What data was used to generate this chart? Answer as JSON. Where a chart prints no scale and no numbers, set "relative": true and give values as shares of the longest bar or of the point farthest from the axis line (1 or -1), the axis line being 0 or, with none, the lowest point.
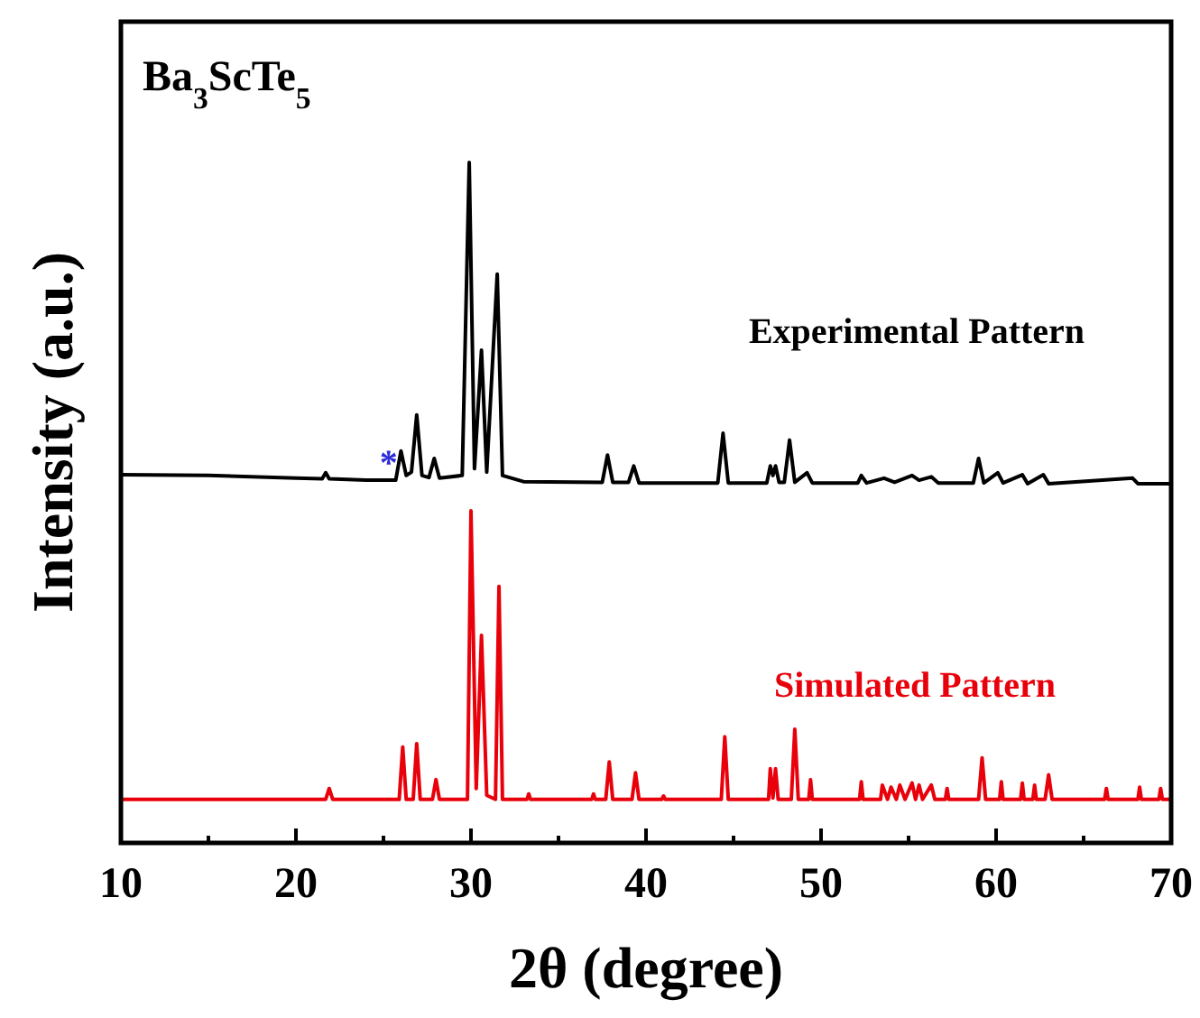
{
  "chart_data": {
    "type": "line",
    "title": "Ba$_{3}$ScTe$_{5}$",
    "xlabel": "2θ (degree)",
    "ylabel": "Intensity (a.u.)",
    "relative": true,
    "xlim": [
      10,
      70
    ],
    "xticks": [
      10,
      {
        "value": 15,
        "label": null
      },
      20,
      {
        "value": 25,
        "label": null
      },
      30,
      {
        "value": 35,
        "label": null
      },
      40,
      {
        "value": 45,
        "label": null
      },
      50,
      {
        "value": 55,
        "label": null
      },
      60,
      {
        "value": 65,
        "label": null
      },
      70
    ],
    "grid": false,
    "marker": "none",
    "line_style": "solid",
    "annotations": [
      {
        "text": "*",
        "x": 25.3,
        "y": 0.562
      }
    ],
    "series": [
      {
        "name": "Experimental Pattern",
        "color": "#000000",
        "x": [
          10,
          15,
          20,
          21.5,
          21.7,
          21.9,
          24,
          25.7,
          26.0,
          26.3,
          26.6,
          26.9,
          27.2,
          27.6,
          27.9,
          28.2,
          29.5,
          29.9,
          30.2,
          30.6,
          30.9,
          31.5,
          31.8,
          33,
          37.5,
          37.8,
          38.1,
          39.0,
          39.3,
          39.6,
          44.1,
          44.4,
          44.7,
          46.9,
          47.1,
          47.25,
          47.4,
          47.6,
          47.9,
          48.2,
          48.5,
          49.2,
          49.5,
          52.1,
          52.3,
          52.6,
          53.6,
          54.2,
          55.2,
          55.6,
          56.3,
          56.7,
          58.7,
          59.0,
          59.3,
          60.1,
          60.4,
          61.5,
          61.8,
          62.7,
          63.0,
          67.8,
          68.1,
          70
        ],
        "values": [
          0.541,
          0.54,
          0.536,
          0.535,
          0.544,
          0.535,
          0.533,
          0.533,
          0.576,
          0.54,
          0.545,
          0.629,
          0.54,
          0.537,
          0.565,
          0.536,
          0.54,
          1.0,
          0.55,
          0.724,
          0.545,
          0.836,
          0.54,
          0.531,
          0.53,
          0.57,
          0.53,
          0.53,
          0.554,
          0.529,
          0.529,
          0.602,
          0.529,
          0.529,
          0.554,
          0.54,
          0.554,
          0.53,
          0.53,
          0.592,
          0.53,
          0.544,
          0.529,
          0.529,
          0.54,
          0.529,
          0.536,
          0.53,
          0.54,
          0.533,
          0.538,
          0.529,
          0.529,
          0.565,
          0.529,
          0.544,
          0.529,
          0.541,
          0.528,
          0.541,
          0.528,
          0.536,
          0.528,
          0.528
        ]
      },
      {
        "name": "Simulated Pattern",
        "color": "#e8000b",
        "x": [
          10,
          21.7,
          21.9,
          22.1,
          25.9,
          26.1,
          26.3,
          26.7,
          26.9,
          27.1,
          27.8,
          28.0,
          28.2,
          29.8,
          30.0,
          30.3,
          30.6,
          30.9,
          31.4,
          31.6,
          31.8,
          33.2,
          33.3,
          33.4,
          36.9,
          37.0,
          37.1,
          37.7,
          37.9,
          38.1,
          39.2,
          39.4,
          39.6,
          40.9,
          41.0,
          41.1,
          44.3,
          44.5,
          44.7,
          47.0,
          47.1,
          47.25,
          47.4,
          47.55,
          48.3,
          48.5,
          48.7,
          49.3,
          49.4,
          49.5,
          52.2,
          52.3,
          52.4,
          53.4,
          53.5,
          53.8,
          54.0,
          54.3,
          54.5,
          54.8,
          55.2,
          55.4,
          55.6,
          55.8,
          56.3,
          56.5,
          57.1,
          57.2,
          57.3,
          59.0,
          59.2,
          59.4,
          60.2,
          60.3,
          60.4,
          61.4,
          61.5,
          61.6,
          62.1,
          62.2,
          62.3,
          62.8,
          63.0,
          63.2,
          66.2,
          66.3,
          66.4,
          68.1,
          68.2,
          68.3,
          69.3,
          69.4,
          69.5,
          70
        ],
        "values": [
          0.064,
          0.064,
          0.08,
          0.064,
          0.064,
          0.141,
          0.064,
          0.064,
          0.146,
          0.064,
          0.064,
          0.093,
          0.064,
          0.064,
          0.488,
          0.08,
          0.305,
          0.07,
          0.064,
          0.377,
          0.064,
          0.064,
          0.072,
          0.064,
          0.064,
          0.072,
          0.064,
          0.064,
          0.119,
          0.064,
          0.064,
          0.103,
          0.064,
          0.064,
          0.069,
          0.064,
          0.064,
          0.156,
          0.064,
          0.064,
          0.109,
          0.066,
          0.109,
          0.064,
          0.064,
          0.167,
          0.064,
          0.064,
          0.093,
          0.064,
          0.064,
          0.09,
          0.064,
          0.064,
          0.085,
          0.064,
          0.082,
          0.064,
          0.085,
          0.064,
          0.088,
          0.064,
          0.085,
          0.064,
          0.085,
          0.064,
          0.064,
          0.08,
          0.064,
          0.064,
          0.125,
          0.064,
          0.064,
          0.09,
          0.064,
          0.064,
          0.088,
          0.064,
          0.064,
          0.085,
          0.064,
          0.064,
          0.1,
          0.064,
          0.064,
          0.08,
          0.064,
          0.064,
          0.082,
          0.064,
          0.064,
          0.08,
          0.064,
          0.064
        ]
      }
    ]
  }
}
